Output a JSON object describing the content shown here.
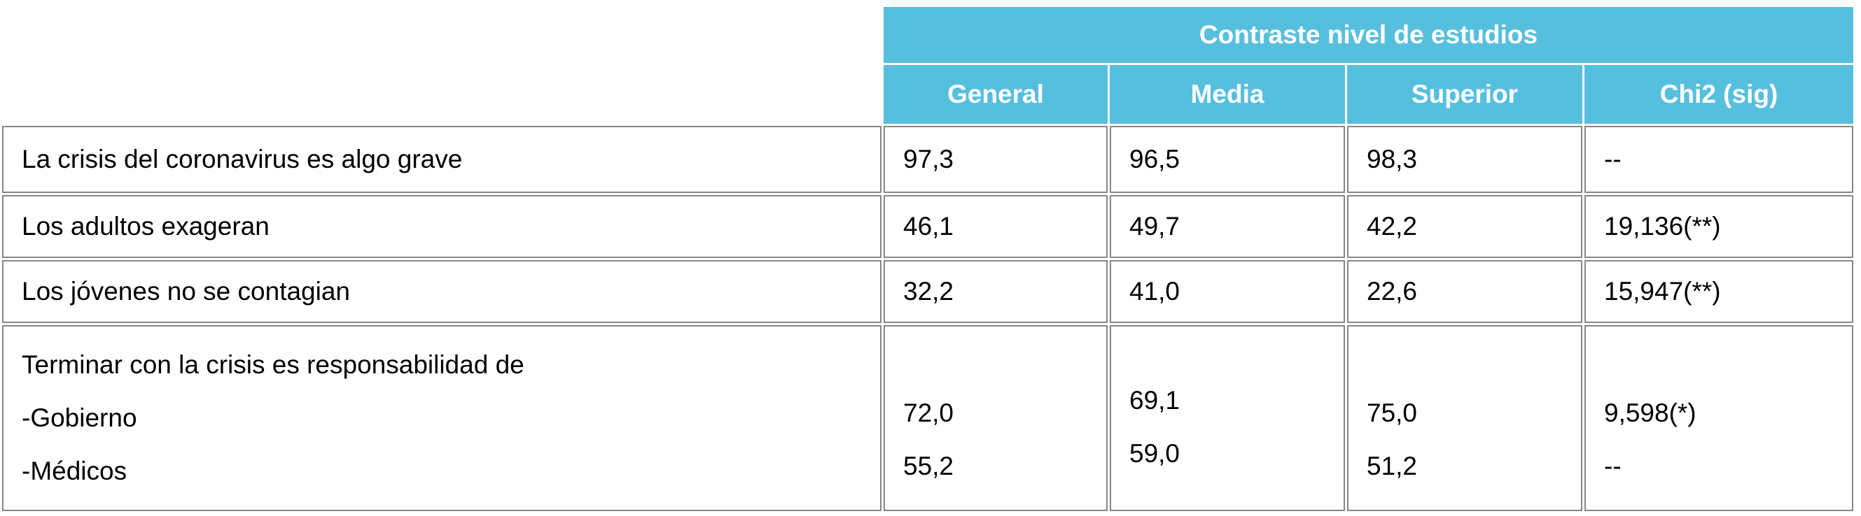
{
  "table": {
    "group_title": "Contraste nivel de estudios",
    "columns": [
      "General",
      "Media",
      "Superior",
      "Chi2 (sig)"
    ],
    "rows": [
      {
        "label": "La crisis del coronavirus es algo grave",
        "values": [
          "97,3",
          "96,5",
          "98,3",
          "--"
        ]
      },
      {
        "label": "Los adultos exageran",
        "values": [
          "46,1",
          "49,7",
          "42,2",
          "19,136(**)"
        ]
      },
      {
        "label": "Los jóvenes no se contagian",
        "values": [
          "32,2",
          "41,0",
          "22,6",
          "15,947(**)"
        ]
      },
      {
        "label_title": "Terminar con la crisis es responsabilidad de",
        "label_items": [
          "-Gobierno",
          "-Médicos"
        ],
        "values": [
          [
            "72,0",
            "55,2"
          ],
          [
            "69,1",
            "59,0"
          ],
          [
            "75,0",
            "51,2"
          ],
          [
            "9,598(*)",
            "--"
          ]
        ]
      }
    ],
    "colors": {
      "header_bg": "#57bfde",
      "header_text": "#ffffff",
      "body_border": "#878787",
      "body_text": "#000000"
    }
  }
}
